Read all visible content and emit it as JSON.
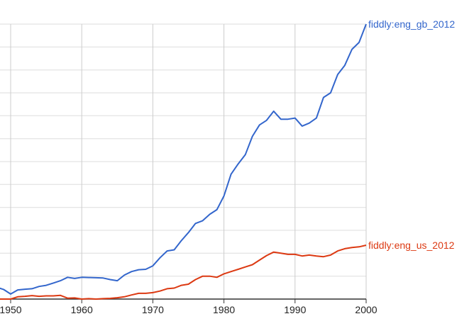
{
  "chart_data": {
    "type": "line",
    "x_ticks": [
      1950,
      1960,
      1970,
      1980,
      1990,
      2000
    ],
    "xlim": [
      1948.5,
      2000
    ],
    "ylim": [
      0,
      12
    ],
    "grid": true,
    "legend": "end-of-line labels",
    "series": [
      {
        "name": "fiddly:eng_gb_2012",
        "color": "#3366cc",
        "x": [
          1948,
          1949,
          1950,
          1951,
          1952,
          1953,
          1954,
          1955,
          1956,
          1957,
          1958,
          1959,
          1960,
          1961,
          1962,
          1963,
          1964,
          1965,
          1966,
          1967,
          1968,
          1969,
          1970,
          1971,
          1972,
          1973,
          1974,
          1975,
          1976,
          1977,
          1978,
          1979,
          1980,
          1981,
          1982,
          1983,
          1984,
          1985,
          1986,
          1987,
          1988,
          1989,
          1990,
          1991,
          1992,
          1993,
          1994,
          1995,
          1996,
          1997,
          1998,
          1999,
          2000
        ],
        "values": [
          0.52,
          0.42,
          0.22,
          0.4,
          0.43,
          0.45,
          0.55,
          0.6,
          0.7,
          0.8,
          0.95,
          0.9,
          0.95,
          0.94,
          0.93,
          0.92,
          0.85,
          0.8,
          1.05,
          1.2,
          1.28,
          1.3,
          1.45,
          1.8,
          2.1,
          2.15,
          2.55,
          2.9,
          3.3,
          3.42,
          3.7,
          3.9,
          4.5,
          5.45,
          5.9,
          6.3,
          7.1,
          7.6,
          7.8,
          8.2,
          7.85,
          7.85,
          7.9,
          7.55,
          7.68,
          7.9,
          8.8,
          9.0,
          9.8,
          10.2,
          10.9,
          11.2,
          12.0
        ]
      },
      {
        "name": "fiddly:eng_us_2012",
        "color": "#dc3912",
        "x": [
          1948,
          1949,
          1950,
          1951,
          1952,
          1953,
          1954,
          1955,
          1956,
          1957,
          1958,
          1959,
          1960,
          1961,
          1962,
          1963,
          1964,
          1965,
          1966,
          1967,
          1968,
          1969,
          1970,
          1971,
          1972,
          1973,
          1974,
          1975,
          1976,
          1977,
          1978,
          1979,
          1980,
          1981,
          1982,
          1983,
          1984,
          1985,
          1986,
          1987,
          1988,
          1989,
          1990,
          1991,
          1992,
          1993,
          1994,
          1995,
          1996,
          1997,
          1998,
          1999,
          2000
        ],
        "values": [
          0.0,
          0.0,
          0.0,
          0.1,
          0.12,
          0.15,
          0.12,
          0.14,
          0.14,
          0.16,
          0.04,
          0.05,
          0.0,
          0.02,
          0.0,
          0.02,
          0.03,
          0.06,
          0.1,
          0.18,
          0.25,
          0.25,
          0.28,
          0.35,
          0.45,
          0.48,
          0.6,
          0.65,
          0.85,
          1.0,
          1.0,
          0.95,
          1.1,
          1.2,
          1.3,
          1.4,
          1.5,
          1.7,
          1.9,
          2.05,
          2.0,
          1.95,
          1.95,
          1.88,
          1.92,
          1.88,
          1.85,
          1.92,
          2.1,
          2.2,
          2.25,
          2.28,
          2.35
        ]
      }
    ]
  }
}
